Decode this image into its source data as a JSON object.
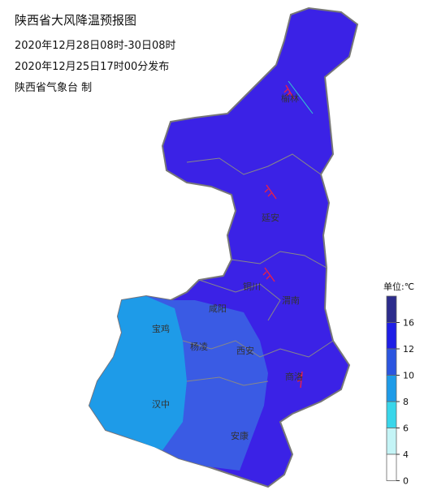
{
  "header": {
    "title": "陕西省大风降温预报图",
    "period": "2020年12月28日08时-30日08时",
    "issued": "2020年12月25日17时00分发布",
    "issuer": "陕西省气象台 制"
  },
  "cities": [
    {
      "label": "榆林"
    },
    {
      "label": "延安"
    },
    {
      "label": "铜川"
    },
    {
      "label": "渭南"
    },
    {
      "label": "咸阳"
    },
    {
      "label": "宝鸡"
    },
    {
      "label": "杨凌"
    },
    {
      "label": "西安"
    },
    {
      "label": "汉中"
    },
    {
      "label": "安康"
    },
    {
      "label": "商洛"
    }
  ],
  "legend": {
    "title": "单位:℃",
    "ticks": [
      16,
      12,
      10,
      8,
      6,
      4,
      0
    ],
    "colors": [
      "#2c2c8c",
      "#1e1ee6",
      "#2b55e0",
      "#1e9be8",
      "#39d6ea",
      "#c4f4f6",
      "#ffffff"
    ]
  }
}
